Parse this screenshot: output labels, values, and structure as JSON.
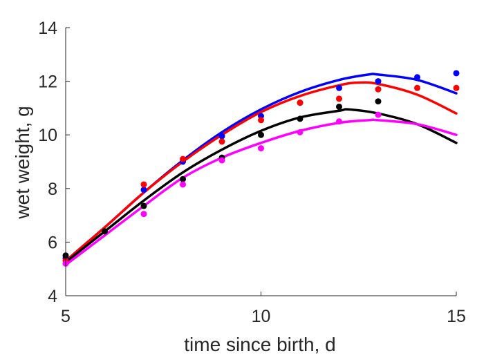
{
  "chart_data": {
    "type": "scatter",
    "title": "",
    "xlabel": "time since birth, d",
    "ylabel": "wet weight, g",
    "xlim": [
      5,
      15
    ],
    "ylim": [
      4,
      14
    ],
    "xticks": [
      5,
      10,
      15
    ],
    "yticks": [
      4,
      6,
      8,
      10,
      12,
      14
    ],
    "grid": false,
    "legend": "none",
    "series": [
      {
        "color": "#0000ff",
        "points": {
          "x": [
            5,
            7,
            8,
            9,
            10,
            11,
            12,
            13,
            14,
            15
          ],
          "y": [
            5.4,
            7.95,
            9.0,
            9.95,
            10.7,
            11.2,
            11.75,
            12.0,
            12.15,
            12.3
          ]
        },
        "fit": {
          "x": [
            5,
            6,
            7,
            8,
            9,
            10,
            11,
            12,
            12.75,
            13,
            14,
            15
          ],
          "y": [
            5.3,
            6.55,
            7.85,
            9.05,
            10.1,
            10.95,
            11.6,
            12.05,
            12.25,
            12.25,
            12.05,
            11.55
          ]
        }
      },
      {
        "color": "#ff0000",
        "points": {
          "x": [
            5,
            7,
            8,
            9,
            10,
            11,
            12,
            13,
            14,
            15
          ],
          "y": [
            5.3,
            8.15,
            9.1,
            9.75,
            10.55,
            11.2,
            11.35,
            11.7,
            11.75,
            11.75
          ]
        },
        "fit": {
          "x": [
            5,
            6,
            7,
            8,
            9,
            10,
            11,
            12,
            12.5,
            13,
            14,
            15
          ],
          "y": [
            5.3,
            6.55,
            7.85,
            9.0,
            10.0,
            10.85,
            11.45,
            11.85,
            11.95,
            11.9,
            11.5,
            10.8
          ]
        }
      },
      {
        "color": "#000000",
        "points": {
          "x": [
            5,
            6,
            7,
            8,
            9,
            10,
            11,
            12,
            13
          ],
          "y": [
            5.5,
            6.4,
            7.35,
            8.35,
            9.15,
            10.0,
            10.6,
            11.05,
            11.25
          ]
        },
        "fit": {
          "x": [
            5,
            6,
            7,
            8,
            9,
            10,
            11,
            12,
            12.25,
            13,
            14,
            15
          ],
          "y": [
            5.25,
            6.4,
            7.55,
            8.6,
            9.45,
            10.15,
            10.65,
            10.9,
            10.95,
            10.8,
            10.4,
            9.7
          ]
        }
      },
      {
        "color": "#ff00ff",
        "points": {
          "x": [
            5,
            7,
            8,
            9,
            10,
            11,
            12,
            13
          ],
          "y": [
            5.2,
            7.05,
            8.15,
            9.05,
            9.5,
            10.1,
            10.5,
            10.75
          ]
        },
        "fit": {
          "x": [
            5,
            6,
            7,
            8,
            9,
            10,
            11,
            12,
            12.75,
            13,
            14,
            15
          ],
          "y": [
            5.15,
            6.25,
            7.35,
            8.4,
            9.15,
            9.7,
            10.15,
            10.45,
            10.55,
            10.55,
            10.4,
            10.0
          ]
        }
      }
    ]
  }
}
